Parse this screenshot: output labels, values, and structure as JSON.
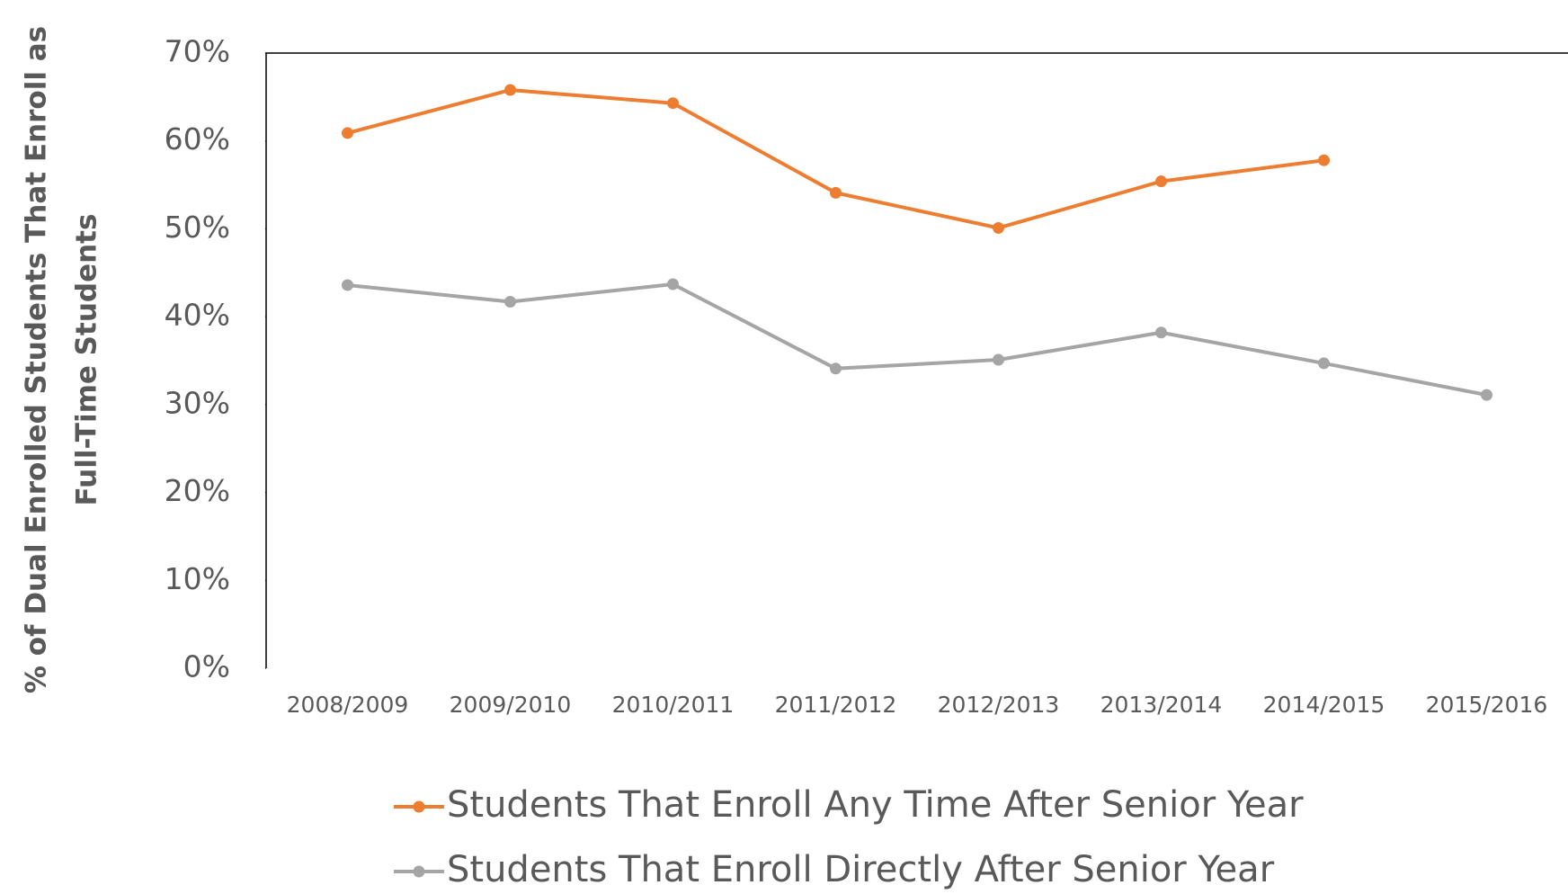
{
  "chart_data": {
    "type": "line",
    "ylabel": [
      "% of Dual Enrolled Students That Enroll as",
      "Full-Time Students"
    ],
    "categories": [
      "2008/2009",
      "2009/2010",
      "2010/2011",
      "2011/2012",
      "2012/2013",
      "2013/2014",
      "2014/2015",
      "2015/2016"
    ],
    "series": [
      {
        "name": "Students That Enroll Any Time After Senior Year",
        "color": "#ed7d31",
        "values": [
          60.9,
          65.8,
          64.3,
          54.1,
          50.1,
          55.4,
          57.8,
          null
        ]
      },
      {
        "name": "Students That Enroll Directly After Senior Year",
        "color": "#a5a5a5",
        "values": [
          43.6,
          41.7,
          43.7,
          34.1,
          35.1,
          38.2,
          34.7,
          31.1
        ]
      }
    ],
    "ylim": [
      0,
      70
    ],
    "yticks": [
      {
        "value": 0,
        "label": "0%"
      },
      {
        "value": 10,
        "label": "10%"
      },
      {
        "value": 20,
        "label": "20%"
      },
      {
        "value": 30,
        "label": "30%"
      },
      {
        "value": 40,
        "label": "40%"
      },
      {
        "value": 50,
        "label": "50%"
      },
      {
        "value": 60,
        "label": "60%"
      },
      {
        "value": 70,
        "label": "70%"
      }
    ],
    "grid": false,
    "legend": "bottom"
  }
}
